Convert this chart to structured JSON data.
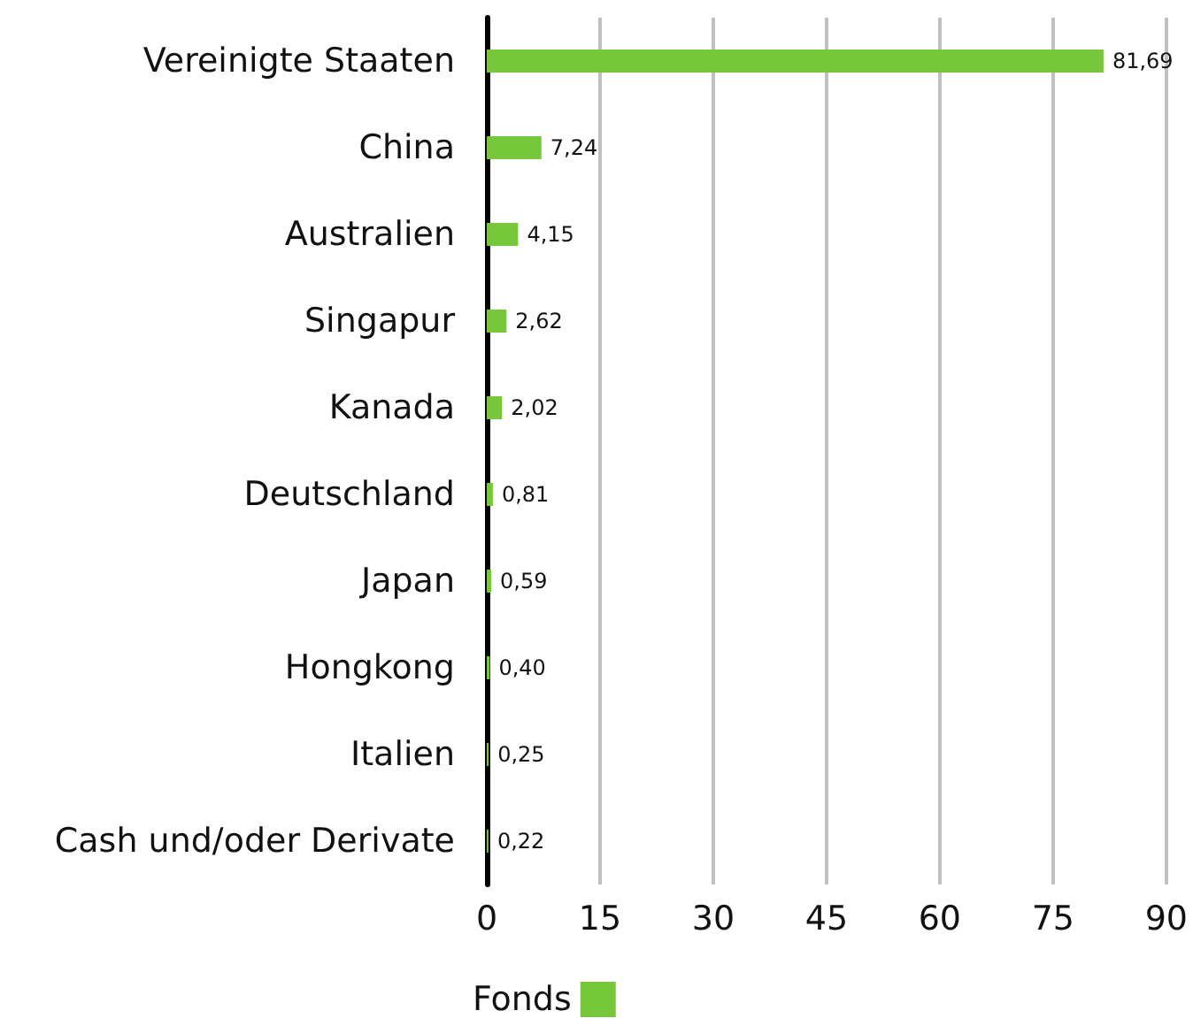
{
  "chart_data": {
    "type": "bar",
    "orientation": "horizontal",
    "categories": [
      "Vereinigte Staaten",
      "China",
      "Australien",
      "Singapur",
      "Kanada",
      "Deutschland",
      "Japan",
      "Hongkong",
      "Italien",
      "Cash und/oder Derivate"
    ],
    "series": [
      {
        "name": "Fonds",
        "color": "#76c83a",
        "values": [
          81.69,
          7.24,
          4.15,
          2.62,
          2.02,
          0.81,
          0.59,
          0.4,
          0.25,
          0.22
        ]
      }
    ],
    "value_labels": [
      "81,69",
      "7,24",
      "4,15",
      "2,62",
      "2,02",
      "0,81",
      "0,59",
      "0,40",
      "0,25",
      "0,22"
    ],
    "xlim": [
      0,
      90
    ],
    "xticks": [
      0,
      15,
      30,
      45,
      60,
      75,
      90
    ],
    "grid": "x",
    "legend": "bottom"
  }
}
